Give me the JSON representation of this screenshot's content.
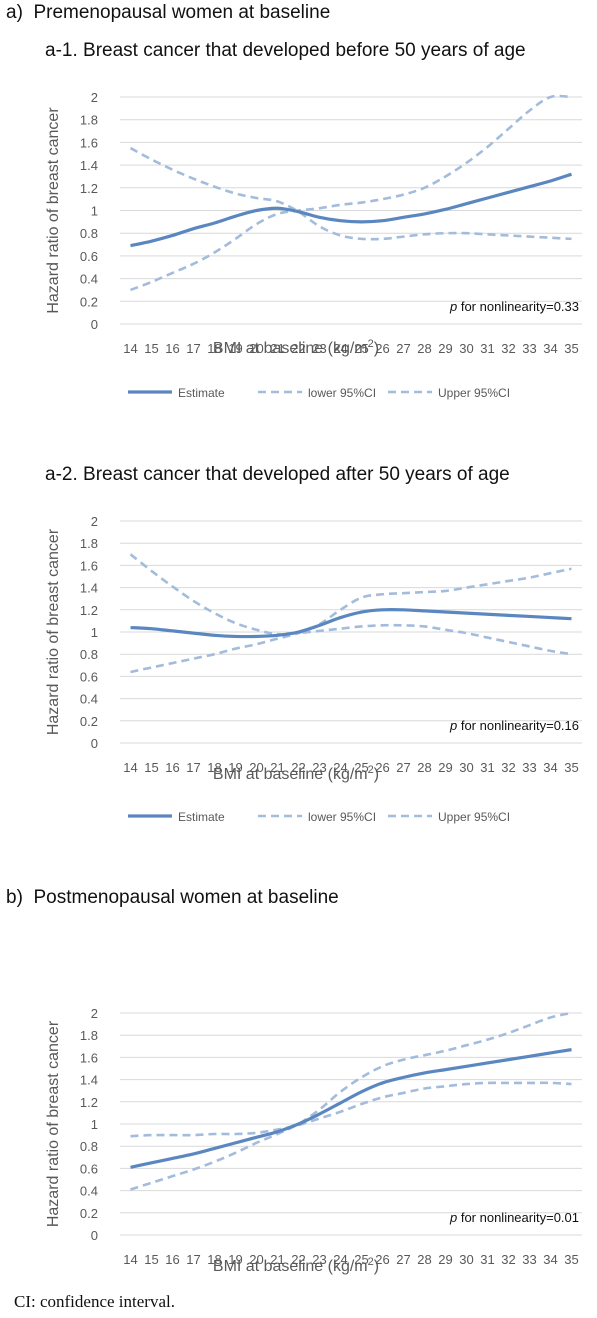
{
  "sections": [
    {
      "label": "a)",
      "title": "Premenopausal women at baseline"
    },
    {
      "label": "b)",
      "title": "Postmenopausal women at baseline"
    }
  ],
  "footnote": "CI: confidence interval.",
  "colors": {
    "line": "#5b87c0",
    "dash": "#a3bcdc",
    "grid": "#d9d9d9",
    "text": "#595959"
  },
  "chart_data": [
    {
      "type": "line",
      "title": "a-1. Breast cancer that developed before 50 years of age",
      "xlabel_main": "BMI at baseline (kg/m",
      "xlabel_sup": "2",
      "xlabel_end": ")",
      "ylabel": "Hazard ratio of breast cancer",
      "annotation_p": "p",
      "annotation_text": " for nonlinearity=0.33",
      "ylim": [
        0,
        2
      ],
      "yticks": [
        "0",
        "0.2",
        "0.4",
        "0.6",
        "0.8",
        "1",
        "1.2",
        "1.4",
        "1.6",
        "1.8",
        "2"
      ],
      "x": [
        14,
        15,
        16,
        17,
        18,
        19,
        20,
        21,
        22,
        23,
        24,
        25,
        26,
        27,
        28,
        29,
        30,
        31,
        32,
        33,
        34,
        35
      ],
      "series": [
        {
          "name": "Estimate",
          "style": "solid",
          "values": [
            0.69,
            0.73,
            0.78,
            0.84,
            0.89,
            0.95,
            1.0,
            1.02,
            0.99,
            0.94,
            0.91,
            0.9,
            0.91,
            0.94,
            0.97,
            1.01,
            1.06,
            1.11,
            1.16,
            1.21,
            1.26,
            1.32
          ]
        },
        {
          "name": "lower 95%CI",
          "style": "dashed",
          "values": [
            1.55,
            1.45,
            1.36,
            1.28,
            1.21,
            1.15,
            1.11,
            1.08,
            0.99,
            0.86,
            0.78,
            0.75,
            0.75,
            0.77,
            0.79,
            0.8,
            0.8,
            0.79,
            0.78,
            0.77,
            0.76,
            0.75
          ]
        },
        {
          "name": "Upper 95%CI",
          "style": "dashed",
          "values": [
            0.3,
            0.37,
            0.45,
            0.53,
            0.63,
            0.75,
            0.88,
            0.97,
            1.0,
            1.02,
            1.05,
            1.07,
            1.1,
            1.14,
            1.2,
            1.3,
            1.42,
            1.56,
            1.72,
            1.88,
            2.03,
            2.1
          ]
        }
      ]
    },
    {
      "type": "line",
      "title": "a-2. Breast cancer that developed after 50 years of age",
      "xlabel_main": "BMI at baseline (kg/m",
      "xlabel_sup": "2",
      "xlabel_end": ")",
      "ylabel": "Hazard ratio of breast cancer",
      "annotation_p": "p",
      "annotation_text": " for nonlinearity=0.16",
      "ylim": [
        0,
        2
      ],
      "yticks": [
        "0",
        "0.2",
        "0.4",
        "0.6",
        "0.8",
        "1",
        "1.2",
        "1.4",
        "1.6",
        "1.8",
        "2"
      ],
      "x": [
        14,
        15,
        16,
        17,
        18,
        19,
        20,
        21,
        22,
        23,
        24,
        25,
        26,
        27,
        28,
        29,
        30,
        31,
        32,
        33,
        34,
        35
      ],
      "series": [
        {
          "name": "Estimate",
          "style": "solid",
          "values": [
            1.04,
            1.03,
            1.01,
            0.99,
            0.97,
            0.96,
            0.96,
            0.97,
            1.0,
            1.06,
            1.13,
            1.18,
            1.2,
            1.2,
            1.19,
            1.18,
            1.17,
            1.16,
            1.15,
            1.14,
            1.13,
            1.12
          ]
        },
        {
          "name": "lower 95%CI",
          "style": "dashed",
          "values": [
            1.7,
            1.55,
            1.41,
            1.28,
            1.17,
            1.08,
            1.02,
            0.98,
            0.99,
            1.01,
            1.03,
            1.05,
            1.06,
            1.06,
            1.05,
            1.02,
            0.99,
            0.95,
            0.91,
            0.87,
            0.83,
            0.8
          ]
        },
        {
          "name": "Upper 95%CI",
          "style": "dashed",
          "values": [
            0.64,
            0.68,
            0.72,
            0.76,
            0.8,
            0.85,
            0.89,
            0.94,
            0.99,
            1.07,
            1.2,
            1.31,
            1.34,
            1.35,
            1.36,
            1.37,
            1.4,
            1.43,
            1.46,
            1.49,
            1.53,
            1.57
          ]
        }
      ]
    },
    {
      "type": "line",
      "title": "",
      "xlabel_main": "BMI at baseline (kg/m",
      "xlabel_sup": "2",
      "xlabel_end": ")",
      "ylabel": "Hazard ratio of breast cancer",
      "annotation_p": "p",
      "annotation_text": " for nonlinearity=0.01",
      "ylim": [
        0,
        2
      ],
      "yticks": [
        "0",
        "0.2",
        "0.4",
        "0.6",
        "0.8",
        "1",
        "1.2",
        "1.4",
        "1.6",
        "1.8",
        "2"
      ],
      "x": [
        14,
        15,
        16,
        17,
        18,
        19,
        20,
        21,
        22,
        23,
        24,
        25,
        26,
        27,
        28,
        29,
        30,
        31,
        32,
        33,
        34,
        35
      ],
      "series": [
        {
          "name": "Estimate",
          "style": "solid",
          "values": [
            0.61,
            0.65,
            0.69,
            0.73,
            0.78,
            0.83,
            0.88,
            0.93,
            1.0,
            1.09,
            1.19,
            1.29,
            1.37,
            1.42,
            1.46,
            1.49,
            1.52,
            1.55,
            1.58,
            1.61,
            1.64,
            1.67
          ]
        },
        {
          "name": "lower 95%CI",
          "style": "dashed",
          "values": [
            0.89,
            0.9,
            0.9,
            0.9,
            0.91,
            0.91,
            0.92,
            0.95,
            0.99,
            1.05,
            1.11,
            1.18,
            1.24,
            1.28,
            1.32,
            1.34,
            1.36,
            1.37,
            1.37,
            1.37,
            1.37,
            1.36
          ]
        },
        {
          "name": "Upper 95%CI",
          "style": "dashed",
          "values": [
            0.41,
            0.47,
            0.53,
            0.59,
            0.66,
            0.74,
            0.83,
            0.91,
            1.0,
            1.13,
            1.29,
            1.42,
            1.52,
            1.58,
            1.62,
            1.66,
            1.71,
            1.76,
            1.82,
            1.89,
            1.96,
            2.04
          ]
        }
      ]
    }
  ]
}
